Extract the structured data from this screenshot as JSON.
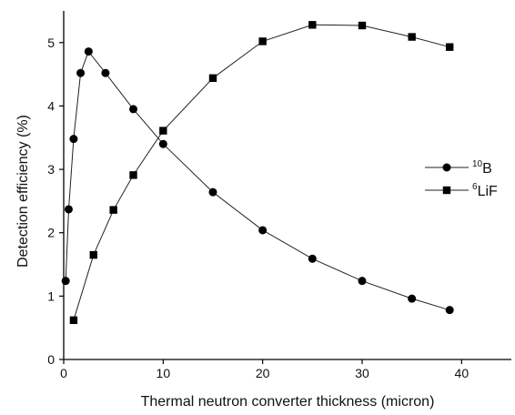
{
  "chart_data": {
    "type": "line",
    "xlabel": "Thermal neutron converter thickness (micron)",
    "ylabel": "Detection efficiency (%)",
    "xlim": [
      0,
      45
    ],
    "ylim": [
      0,
      5.5
    ],
    "x_ticks": [
      0,
      10,
      20,
      30,
      40
    ],
    "y_ticks": [
      0,
      1,
      2,
      3,
      4,
      5
    ],
    "grid": false,
    "legend_position": "right",
    "series": [
      {
        "name": "10B",
        "name_sup": "10",
        "name_base": "B",
        "marker": "circle",
        "color": "#000000",
        "points": [
          [
            0.2,
            1.24
          ],
          [
            0.5,
            2.37
          ],
          [
            1.0,
            3.48
          ],
          [
            1.7,
            4.52
          ],
          [
            2.5,
            4.86
          ],
          [
            4.2,
            4.52
          ],
          [
            7.0,
            3.95
          ],
          [
            10.0,
            3.4
          ],
          [
            15.0,
            2.64
          ],
          [
            20.0,
            2.04
          ],
          [
            25.0,
            1.59
          ],
          [
            30.0,
            1.24
          ],
          [
            35.0,
            0.96
          ],
          [
            38.8,
            0.78
          ]
        ]
      },
      {
        "name": "6LiF",
        "name_sup": "6",
        "name_base": "LiF",
        "marker": "square",
        "color": "#000000",
        "points": [
          [
            1.0,
            0.62
          ],
          [
            3.0,
            1.65
          ],
          [
            5.0,
            2.36
          ],
          [
            7.0,
            2.91
          ],
          [
            10.0,
            3.61
          ],
          [
            15.0,
            4.44
          ],
          [
            20.0,
            5.02
          ],
          [
            25.0,
            5.28
          ],
          [
            30.0,
            5.27
          ],
          [
            35.0,
            5.09
          ],
          [
            38.8,
            4.93
          ]
        ]
      }
    ]
  }
}
